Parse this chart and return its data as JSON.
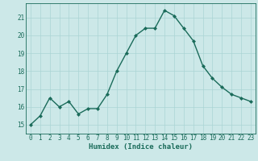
{
  "x": [
    0,
    1,
    2,
    3,
    4,
    5,
    6,
    7,
    8,
    9,
    10,
    11,
    12,
    13,
    14,
    15,
    16,
    17,
    18,
    19,
    20,
    21,
    22,
    23
  ],
  "y": [
    15.0,
    15.5,
    16.5,
    16.0,
    16.3,
    15.6,
    15.9,
    15.9,
    16.7,
    18.0,
    19.0,
    20.0,
    20.4,
    20.4,
    21.4,
    21.1,
    20.4,
    19.7,
    18.3,
    17.6,
    17.1,
    16.7,
    16.5,
    16.3
  ],
  "line_color": "#1a6b5a",
  "marker": "D",
  "markersize": 2.0,
  "bg_color": "#cce8e8",
  "grid_color": "#aad4d4",
  "xlabel": "Humidex (Indice chaleur)",
  "xlabel_fontsize": 6.5,
  "tick_fontsize": 5.5,
  "xlim": [
    -0.5,
    23.5
  ],
  "ylim": [
    14.5,
    21.8
  ],
  "yticks": [
    15,
    16,
    17,
    18,
    19,
    20,
    21
  ],
  "xticks": [
    0,
    1,
    2,
    3,
    4,
    5,
    6,
    7,
    8,
    9,
    10,
    11,
    12,
    13,
    14,
    15,
    16,
    17,
    18,
    19,
    20,
    21,
    22,
    23
  ],
  "linewidth": 1.0
}
